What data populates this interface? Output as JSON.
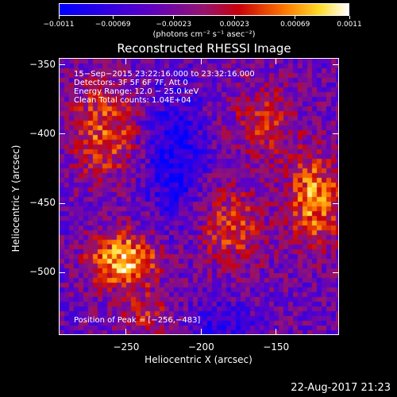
{
  "chart_data": {
    "type": "heatmap",
    "title": "Reconstructed RHESSI Image",
    "xlabel": "Heliocentric X (arcsec)",
    "ylabel": "Heliocentric Y (arcsec)",
    "xlim": [
      -295,
      -108
    ],
    "ylim": [
      -545,
      -345
    ],
    "x_ticks": [
      {
        "value": -250,
        "label": "−250"
      },
      {
        "value": -200,
        "label": "−200"
      },
      {
        "value": -150,
        "label": "−150"
      }
    ],
    "y_ticks": [
      {
        "value": -350,
        "label": "−350"
      },
      {
        "value": -400,
        "label": "−400"
      },
      {
        "value": -450,
        "label": "−450"
      },
      {
        "value": -500,
        "label": "−500"
      }
    ],
    "colorbar": {
      "min": -0.0011,
      "max": 0.0011,
      "units": "(photons cm⁻² s⁻¹ asec⁻²)",
      "ticks": [
        {
          "value": -0.0011,
          "label": "−0.0011"
        },
        {
          "value": -0.00069,
          "label": "−0.00069"
        },
        {
          "value": -0.00023,
          "label": "−0.00023"
        },
        {
          "value": 0.00023,
          "label": "0.00023"
        },
        {
          "value": 0.00069,
          "label": "0.00069"
        },
        {
          "value": 0.0011,
          "label": "0.0011"
        }
      ]
    },
    "info_lines": [
      "15−Sep−2015 23:22:16.000 to 23:32:16.000",
      "Detectors: 3F 5F 6F 7F, Att 0",
      "Energy Range: 12.0 − 25.0 keV",
      "Clean     Total counts: 1.04E+04"
    ],
    "peak_label": "Position of Peak = [−256,−483]",
    "peak_position": [
      -256,
      -483
    ],
    "grid": false
  },
  "footer": {
    "timestamp": "22-Aug-2017 21:23"
  }
}
